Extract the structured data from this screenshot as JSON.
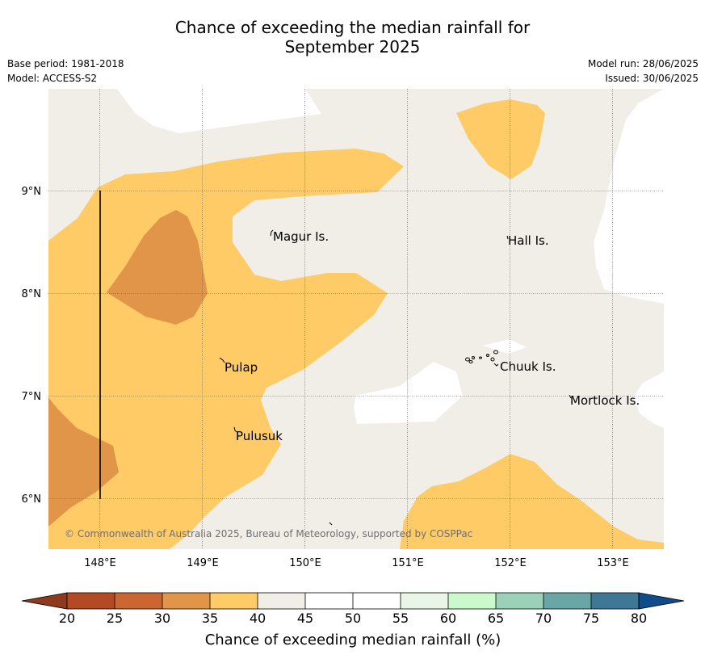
{
  "title": {
    "line1": "Chance of exceeding the median rainfall for",
    "line2": "September 2025"
  },
  "meta_left": {
    "base_period": "Base period: 1981-2018",
    "model": "Model: ACCESS-S2"
  },
  "meta_right": {
    "model_run": "Model run: 28/06/2025",
    "issued": "Issued: 30/06/2025"
  },
  "map": {
    "lat_labels": [
      "9°N",
      "8°N",
      "7°N",
      "6°N"
    ],
    "lon_labels": [
      "148°E",
      "149°E",
      "150°E",
      "151°E",
      "152°E",
      "153°E"
    ],
    "places": [
      "Magur Is.",
      "Hall Is.",
      "Pulap",
      "Chuuk Is.",
      "Mortlock Is.",
      "Pulusuk"
    ],
    "copyright": "© Commonwealth of Australia 2025, Bureau of Meteorology, supported by COSPPac",
    "colors": {
      "bin_20_25": "#b34a25",
      "bin_25_30": "#cb6633",
      "bin_30_35": "#e09548",
      "bin_35_40": "#fecb66",
      "bin_40_45": "#f1ede7",
      "bin_45_50": "#ffffff",
      "bin_50_55": "#ffffff",
      "bin_55_60": "#e9f5e7",
      "bin_60_65": "#caf9cb",
      "bin_65_70": "#9bd1b8",
      "bin_70_75": "#6aa6a6",
      "bin_75_80": "#3f7897"
    }
  },
  "colorbar": {
    "ticks": [
      "20",
      "25",
      "30",
      "35",
      "40",
      "45",
      "50",
      "55",
      "60",
      "65",
      "70",
      "75",
      "80"
    ],
    "label": "Chance of exceeding median rainfall (%)"
  }
}
